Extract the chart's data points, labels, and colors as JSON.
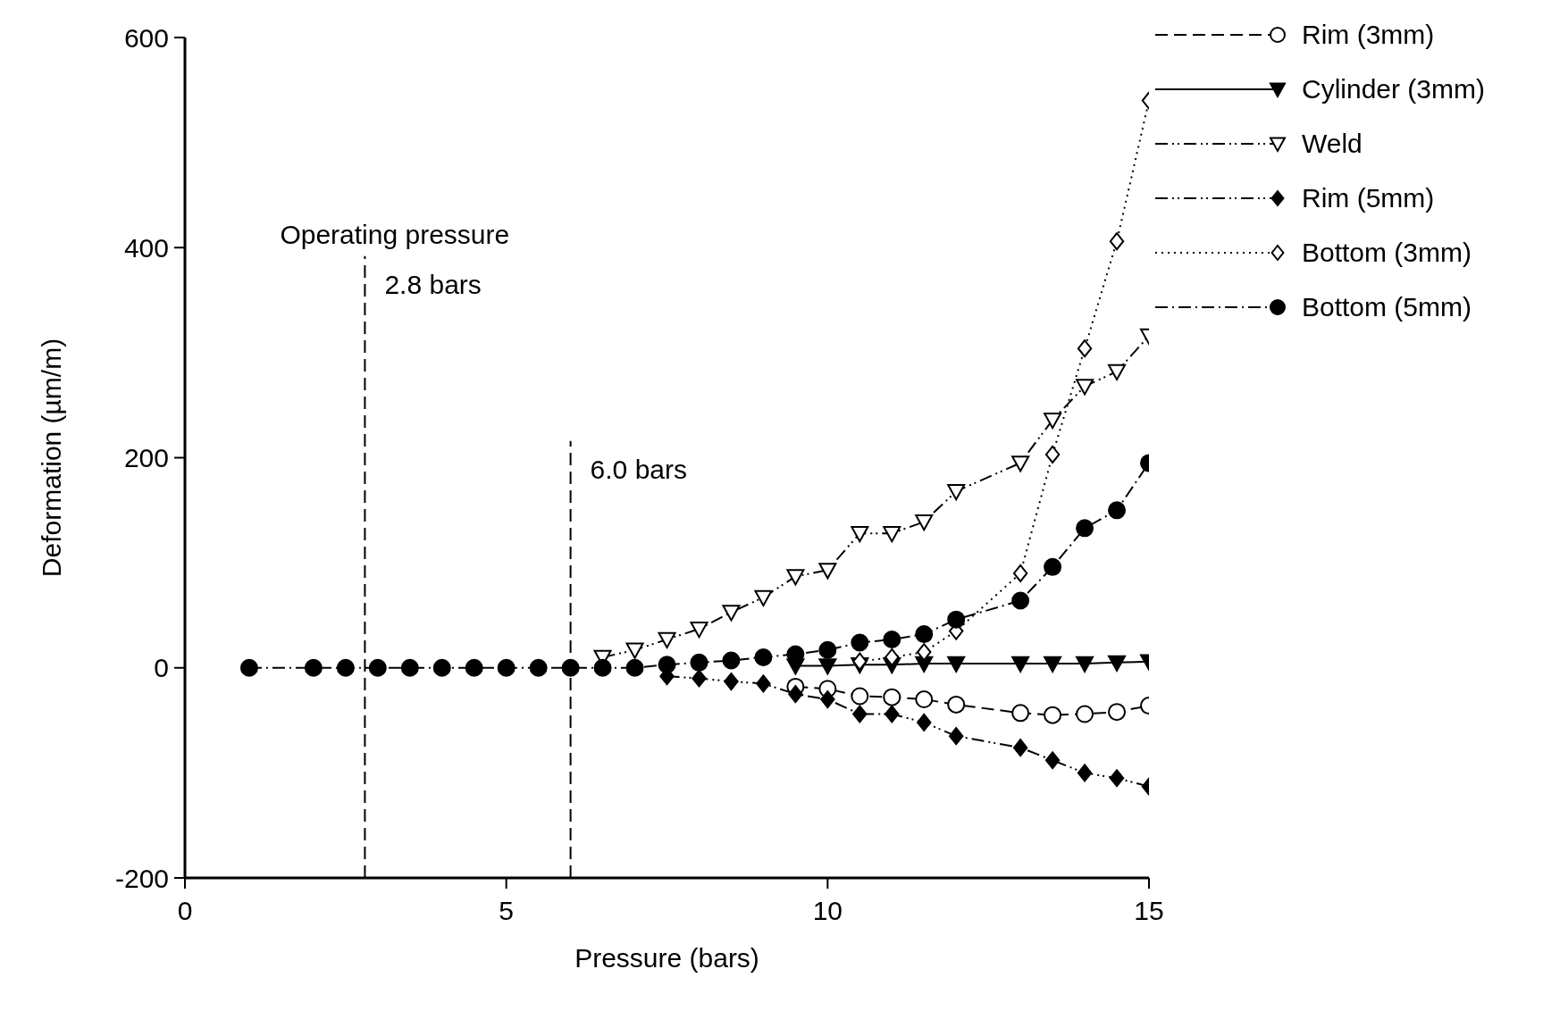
{
  "chart_data": {
    "type": "line",
    "xlabel": "Pressure (bars)",
    "ylabel": "Deformation (µm/m)",
    "x": [
      1,
      2,
      2.5,
      3,
      3.5,
      4,
      4.5,
      5,
      5.5,
      6,
      6.5,
      7,
      7.5,
      8,
      8.5,
      9,
      9.5,
      10,
      10.5,
      11,
      11.5,
      12,
      13,
      13.5,
      14,
      14.5,
      15
    ],
    "series": [
      {
        "name": "Rim (3mm)",
        "color": "#000000",
        "line_style": "dashed",
        "marker": "circle",
        "values": [
          null,
          null,
          null,
          null,
          null,
          null,
          null,
          null,
          null,
          null,
          null,
          null,
          null,
          null,
          null,
          null,
          -18,
          -20,
          -27,
          -28,
          -30,
          -35,
          -43,
          -45,
          -44,
          -42,
          -36
        ]
      },
      {
        "name": "Cylinder (3mm)",
        "color": "#000000",
        "line_style": "solid",
        "marker": "triangle",
        "values": [
          null,
          null,
          null,
          null,
          null,
          null,
          null,
          null,
          null,
          null,
          null,
          null,
          null,
          null,
          null,
          null,
          2,
          2,
          3,
          3,
          4,
          4,
          4,
          4,
          4,
          5,
          6
        ]
      },
      {
        "name": "Weld",
        "color": "#000000",
        "line_style": "dashdotdot",
        "marker": "triangle",
        "values": [
          null,
          null,
          null,
          null,
          null,
          null,
          null,
          null,
          null,
          null,
          10,
          17,
          27,
          37,
          53,
          67,
          87,
          93,
          128,
          128,
          139,
          168,
          195,
          236,
          268,
          282,
          316
        ]
      },
      {
        "name": "Rim (5mm)",
        "color": "#000000",
        "line_style": "dashdotdot",
        "marker": "diamond",
        "values": [
          null,
          null,
          null,
          null,
          null,
          null,
          null,
          null,
          null,
          null,
          null,
          null,
          -8,
          -10,
          -13,
          -15,
          -25,
          -30,
          -44,
          -44,
          -52,
          -65,
          -76,
          -88,
          -100,
          -105,
          -113
        ]
      },
      {
        "name": "Bottom (3mm)",
        "color": "#000000",
        "line_style": "dotted",
        "marker": "diamond",
        "values": [
          null,
          null,
          null,
          null,
          null,
          null,
          null,
          null,
          null,
          null,
          null,
          null,
          null,
          null,
          null,
          null,
          null,
          null,
          6,
          10,
          15,
          35,
          90,
          203,
          304,
          406,
          540
        ]
      },
      {
        "name": "Bottom (5mm)",
        "color": "#000000",
        "line_style": "dashdot",
        "marker": "circle",
        "values": [
          0,
          0,
          0,
          0,
          0,
          0,
          0,
          0,
          0,
          0,
          0,
          0,
          3,
          5,
          7,
          10,
          13,
          17,
          24,
          27,
          32,
          46,
          64,
          96,
          133,
          150,
          195
        ]
      }
    ],
    "xlim": [
      0,
      15
    ],
    "xticks": [
      0,
      5,
      10,
      15
    ],
    "ylim": [
      -200,
      600
    ],
    "yticks": [
      -200,
      0,
      200,
      400,
      600
    ],
    "ref_lines": [
      {
        "axis": "x",
        "value": 2.8,
        "label": "2.8 bars",
        "line_style": "dashed"
      },
      {
        "axis": "x",
        "value": 6.0,
        "label": "6.0 bars",
        "line_style": "dashed"
      }
    ],
    "annotations": [
      "Operating pressure"
    ],
    "grid": false,
    "legend": "top right"
  }
}
